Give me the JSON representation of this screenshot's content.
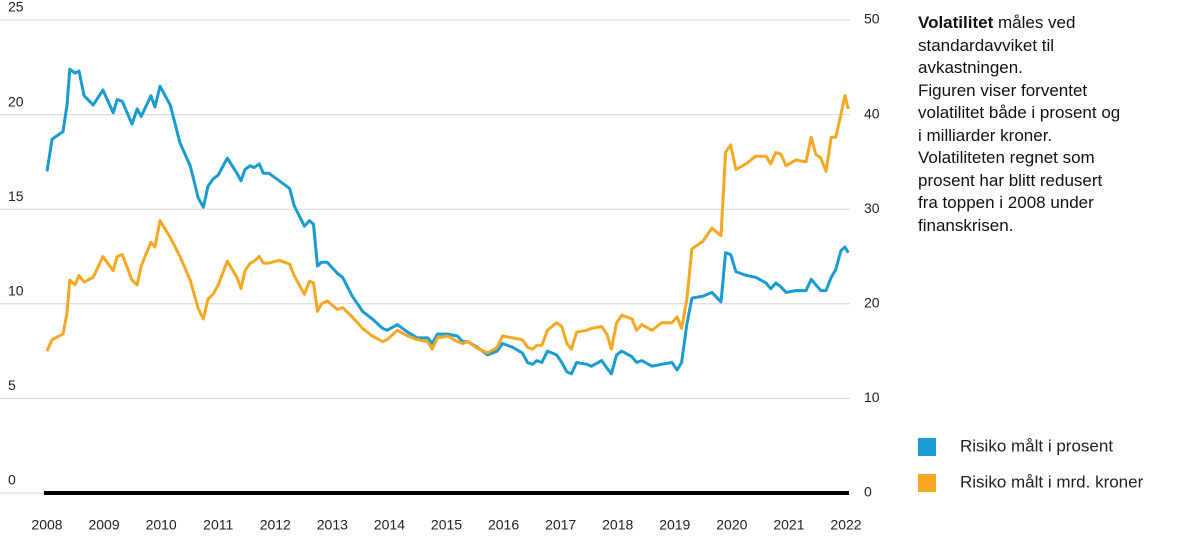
{
  "chart_data": {
    "type": "line",
    "annotation": {
      "bold": "Volatilitet",
      "lines": [
        "måles ved",
        "standardavviket til",
        "avkastningen.",
        "Figuren viser forventet",
        "volatilitet både i prosent og",
        "i milliarder kroner.",
        "Volatiliteten regnet som",
        "prosent har blitt redusert",
        "fra toppen i 2008 under",
        "finanskrisen."
      ]
    },
    "x": [
      2008.0,
      2008.09,
      2008.28,
      2008.35,
      2008.4,
      2008.49,
      2008.56,
      2008.65,
      2008.81,
      2008.98,
      2009.16,
      2009.23,
      2009.32,
      2009.49,
      2009.58,
      2009.65,
      2009.82,
      2009.89,
      2009.98,
      2010.16,
      2010.33,
      2010.51,
      2010.65,
      2010.74,
      2010.82,
      2010.91,
      2011.0,
      2011.16,
      2011.33,
      2011.4,
      2011.47,
      2011.56,
      2011.63,
      2011.72,
      2011.79,
      2011.89,
      2012.07,
      2012.25,
      2012.33,
      2012.51,
      2012.6,
      2012.67,
      2012.74,
      2012.81,
      2012.91,
      2013.09,
      2013.18,
      2013.35,
      2013.53,
      2013.7,
      2013.88,
      2013.96,
      2014.14,
      2014.32,
      2014.49,
      2014.67,
      2014.75,
      2014.84,
      2015.02,
      2015.19,
      2015.28,
      2015.37,
      2015.54,
      2015.72,
      2015.89,
      2015.98,
      2016.16,
      2016.33,
      2016.42,
      2016.51,
      2016.58,
      2016.67,
      2016.77,
      2016.93,
      2017.02,
      2017.11,
      2017.19,
      2017.28,
      2017.46,
      2017.54,
      2017.72,
      2017.81,
      2017.89,
      2017.98,
      2018.07,
      2018.25,
      2018.33,
      2018.42,
      2018.6,
      2018.77,
      2018.95,
      2019.04,
      2019.12,
      2019.21,
      2019.3,
      2019.49,
      2019.65,
      2019.81,
      2019.89,
      2019.98,
      2020.07,
      2020.25,
      2020.42,
      2020.6,
      2020.68,
      2020.77,
      2020.86,
      2020.95,
      2021.12,
      2021.3,
      2021.39,
      2021.47,
      2021.56,
      2021.65,
      2021.74,
      2021.82,
      2021.91,
      2021.98,
      2022.04
    ],
    "series": [
      {
        "name": "Risiko målt i prosent",
        "color": "#1a9bd1",
        "axis": "y",
        "values": [
          17.0,
          18.7,
          19.1,
          20.5,
          22.4,
          22.2,
          22.3,
          21.0,
          20.5,
          21.3,
          20.1,
          20.8,
          20.7,
          19.5,
          20.3,
          19.9,
          21.0,
          20.4,
          21.5,
          20.5,
          18.5,
          17.3,
          15.6,
          15.1,
          16.2,
          16.6,
          16.8,
          17.7,
          16.9,
          16.5,
          17.1,
          17.3,
          17.2,
          17.4,
          16.9,
          16.9,
          16.5,
          16.1,
          15.2,
          14.1,
          14.4,
          14.2,
          12.0,
          12.2,
          12.2,
          11.6,
          11.4,
          10.4,
          9.6,
          9.2,
          8.7,
          8.6,
          8.9,
          8.5,
          8.2,
          8.2,
          7.9,
          8.4,
          8.4,
          8.3,
          8.0,
          8.0,
          7.7,
          7.3,
          7.5,
          7.9,
          7.7,
          7.4,
          6.9,
          6.8,
          7.0,
          6.9,
          7.5,
          7.3,
          6.9,
          6.4,
          6.3,
          6.9,
          6.8,
          6.7,
          7.0,
          6.6,
          6.3,
          7.3,
          7.5,
          7.2,
          6.9,
          7.0,
          6.7,
          6.8,
          6.9,
          6.5,
          6.9,
          8.9,
          10.3,
          10.4,
          10.6,
          10.1,
          12.7,
          12.6,
          11.7,
          11.5,
          11.4,
          11.1,
          10.8,
          11.1,
          10.9,
          10.6,
          10.7,
          10.7,
          11.3,
          11.0,
          10.7,
          10.7,
          11.4,
          11.8,
          12.8,
          13.0,
          12.7
        ]
      },
      {
        "name": "Risiko målt i mrd. kroner",
        "color": "#f5a823",
        "axis": "y2",
        "values": [
          15.0,
          16.2,
          16.8,
          19.0,
          22.5,
          22.0,
          23.0,
          22.3,
          22.8,
          25.0,
          23.5,
          25.0,
          25.2,
          22.5,
          22.0,
          24.0,
          26.5,
          26.0,
          28.8,
          27.0,
          25.0,
          22.5,
          19.5,
          18.4,
          20.5,
          21.0,
          22.0,
          24.5,
          22.8,
          21.6,
          23.5,
          24.3,
          24.5,
          25.0,
          24.3,
          24.3,
          24.6,
          24.2,
          23.0,
          21.0,
          22.4,
          22.2,
          19.2,
          20.0,
          20.3,
          19.4,
          19.6,
          18.6,
          17.4,
          16.6,
          16.0,
          16.2,
          17.2,
          16.6,
          16.2,
          16.0,
          15.2,
          16.4,
          16.6,
          16.0,
          15.8,
          16.0,
          15.3,
          14.8,
          15.4,
          16.6,
          16.4,
          16.2,
          15.4,
          15.2,
          15.6,
          15.6,
          17.2,
          18.0,
          17.6,
          15.8,
          15.2,
          17.0,
          17.2,
          17.4,
          17.6,
          16.8,
          15.2,
          18.0,
          18.8,
          18.4,
          17.2,
          17.8,
          17.2,
          18.0,
          18.0,
          18.6,
          17.4,
          20.4,
          25.8,
          26.6,
          28.0,
          27.2,
          36.0,
          36.8,
          34.2,
          34.8,
          35.6,
          35.6,
          34.8,
          36.0,
          35.8,
          34.6,
          35.2,
          35.0,
          37.6,
          35.8,
          35.4,
          34.0,
          37.6,
          37.6,
          40.0,
          42.0,
          40.6
        ]
      }
    ],
    "xlim": [
      2008,
      2022
    ],
    "xticks": [
      2008,
      2009,
      2010,
      2011,
      2012,
      2013,
      2014,
      2015,
      2016,
      2017,
      2018,
      2019,
      2020,
      2021,
      2022
    ],
    "ylim": [
      0,
      25
    ],
    "yticks": [
      0,
      5,
      10,
      15,
      20,
      25
    ],
    "y2lim": [
      0,
      50
    ],
    "y2ticks": [
      0,
      10,
      20,
      30,
      40,
      50
    ],
    "grid": true,
    "legend": "lower right"
  }
}
